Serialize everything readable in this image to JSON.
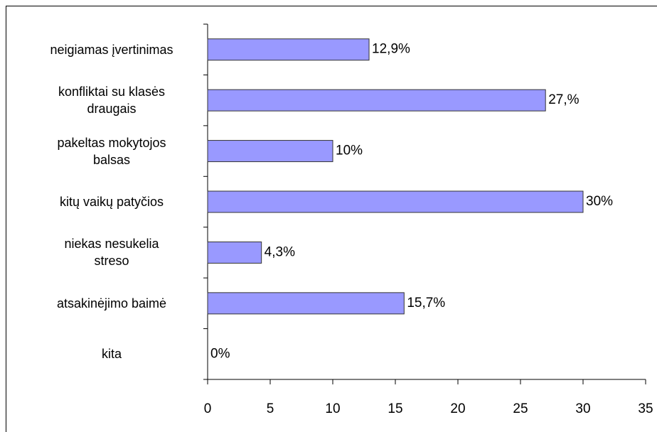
{
  "chart_data": {
    "type": "hbar",
    "categories": [
      "neigiamas įvertinimas",
      "konfliktai su klasės\ndraugais",
      "pakeltas mokytojos\nbalsas",
      "kitų vaikų patyčios",
      "niekas nesukelia\nstreso",
      "atsakinėjimo baimė",
      "kita"
    ],
    "values": [
      12.9,
      27,
      10,
      30,
      4.3,
      15.7,
      0
    ],
    "value_labels": [
      "12,9%",
      "27,%",
      "10%",
      "30%",
      "4,3%",
      "15,7%",
      "0%"
    ],
    "color": "#9999ff",
    "xlim": [
      0,
      35
    ],
    "xticks": [
      0,
      5,
      10,
      15,
      20,
      25,
      30,
      35
    ]
  }
}
